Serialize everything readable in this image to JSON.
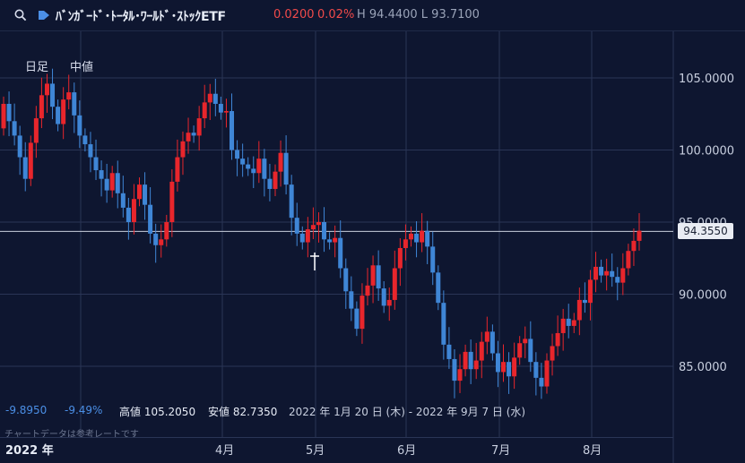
{
  "header": {
    "ticker_name": "ﾊﾞﾝｶﾞｰﾄﾞ･ﾄｰﾀﾙ･ﾜｰﾙﾄﾞ･ｽﾄｯｸETF",
    "change_abs": "0.0200",
    "change_pct": "0.02%",
    "high_low": "H 94.4400  L 93.7100",
    "icons": [
      "search-icon",
      "tag-icon"
    ]
  },
  "controls": {
    "daily_label": "日足",
    "mid_label": "中値"
  },
  "stats": {
    "change_abs": "-9.8950",
    "change_pct": "-9.49%",
    "high": "高値 105.2050",
    "low": "安値 82.7350",
    "range": "2022 年 1月 20 日 (木) - 2022 年 9月 7 日 (水)"
  },
  "disclaimer": "チャートデータは参考レートです",
  "current_price": "94.3550",
  "colors": {
    "background": "#0e1630",
    "up": "#e8262c",
    "down": "#3f86d6",
    "grid": "#2a3556"
  },
  "chart_data": {
    "type": "candlestick",
    "y_ticks": [
      "105.0000",
      "100.0000",
      "95.0000",
      "90.0000",
      "85.0000"
    ],
    "y_tick_values": [
      105,
      100,
      95,
      90,
      85
    ],
    "ylim": [
      82.0,
      108.0
    ],
    "x_ticks": [
      "2022 年",
      "4月",
      "5月",
      "6月",
      "7月",
      "8月"
    ],
    "current_price": 94.355,
    "closes": [
      103.2,
      102.0,
      101.0,
      99.5,
      98.0,
      100.5,
      102.2,
      103.8,
      104.6,
      103.0,
      101.8,
      103.5,
      104.0,
      102.4,
      101.0,
      100.4,
      99.5,
      98.6,
      98.0,
      97.2,
      98.4,
      97.0,
      96.0,
      95.0,
      96.6,
      97.6,
      96.2,
      94.2,
      93.4,
      93.8,
      95.0,
      97.8,
      99.5,
      100.6,
      101.2,
      101.0,
      102.2,
      103.3,
      103.9,
      103.2,
      102.6,
      102.7,
      100.0,
      99.4,
      99.0,
      98.7,
      98.4,
      99.4,
      98.0,
      97.3,
      98.5,
      99.8,
      97.6,
      95.3,
      94.2,
      93.6,
      94.5,
      94.8,
      95.0,
      93.8,
      93.6,
      93.9,
      91.8,
      90.2,
      89.0,
      87.6,
      89.9,
      90.6,
      92.0,
      90.4,
      89.2,
      89.6,
      91.8,
      93.2,
      93.8,
      94.2,
      93.6,
      94.4,
      93.3,
      91.5,
      89.4,
      86.5,
      85.5,
      84.0,
      84.8,
      86.0,
      84.8,
      85.4,
      86.7,
      87.4,
      85.9,
      84.6,
      85.3,
      84.3,
      85.6,
      86.6,
      86.9,
      85.3,
      84.2,
      83.6,
      85.4,
      86.4,
      87.3,
      88.3,
      87.8,
      88.2,
      89.6,
      89.4,
      91.0,
      91.9,
      91.3,
      91.6,
      91.2,
      90.8,
      91.8,
      93.0,
      93.7,
      94.4
    ]
  }
}
